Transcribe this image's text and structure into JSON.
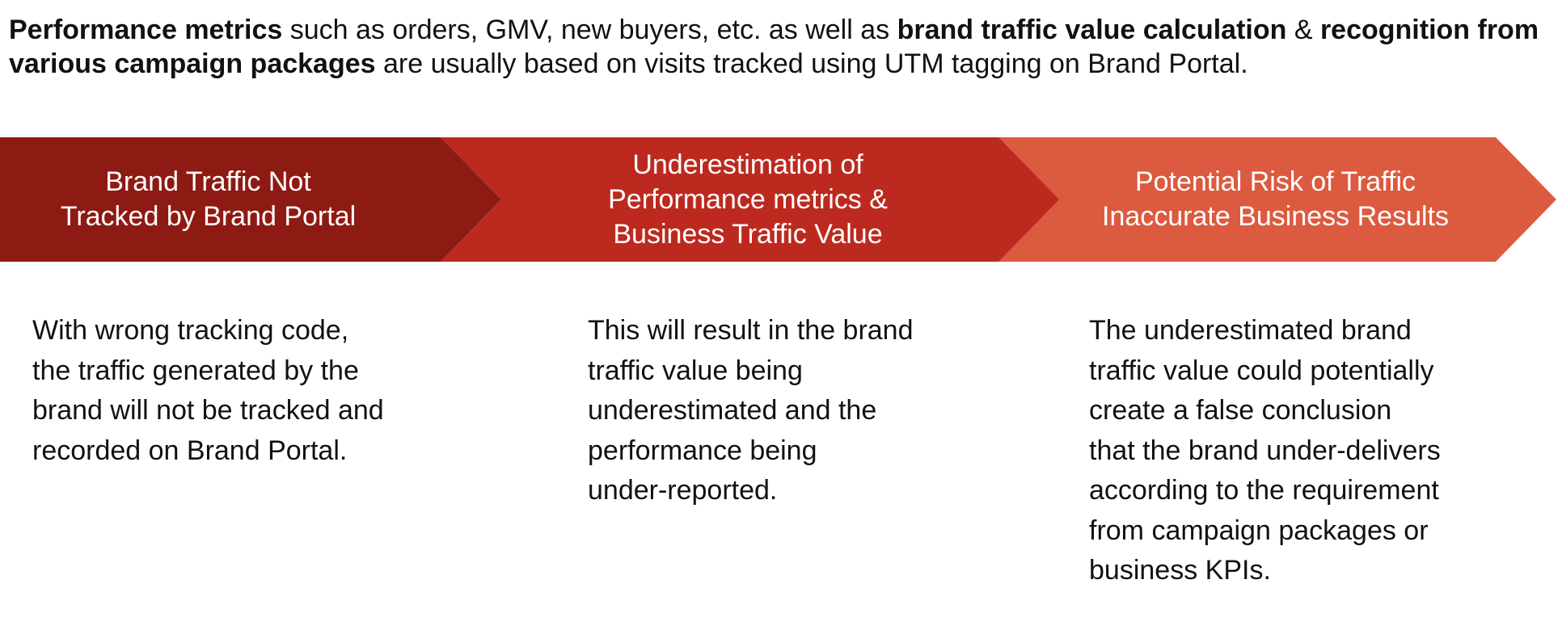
{
  "intro": {
    "segments": [
      {
        "text": "Performance metrics",
        "bold": true
      },
      {
        "text": " such as orders, GMV, new buyers, etc. as well as ",
        "bold": false
      },
      {
        "text": "brand traffic value calculation",
        "bold": true
      },
      {
        "text": " & ",
        "bold": false
      },
      {
        "text": "recognition from various campaign packages",
        "bold": true
      },
      {
        "text": " are usually based on visits tracked using UTM tagging on Brand Portal.",
        "bold": false
      }
    ]
  },
  "colors": {
    "stage1": "#8E1A14",
    "stage2": "#BC2A1F",
    "stage3": "#DC5A3F",
    "text": "#111111"
  },
  "stages": [
    {
      "title_lines": [
        "Brand Traffic Not",
        "Tracked by Brand Portal"
      ],
      "description_lines": [
        "With wrong tracking code,",
        "the traffic generated by the",
        "brand will not be tracked and",
        "recorded on Brand Portal."
      ]
    },
    {
      "title_lines": [
        "Underestimation of",
        "Performance metrics &",
        "Business Traffic Value"
      ],
      "description_lines": [
        "This will result in the brand",
        "traffic value being",
        "underestimated and the",
        "performance being",
        "under-reported."
      ]
    },
    {
      "title_lines": [
        "Potential Risk of Traffic",
        "Inaccurate Business Results"
      ],
      "description_lines": [
        "The underestimated brand",
        "traffic value could potentially",
        "create a false conclusion",
        "that the brand under-delivers",
        "according to the requirement",
        "from campaign packages or",
        "business KPIs."
      ]
    }
  ]
}
